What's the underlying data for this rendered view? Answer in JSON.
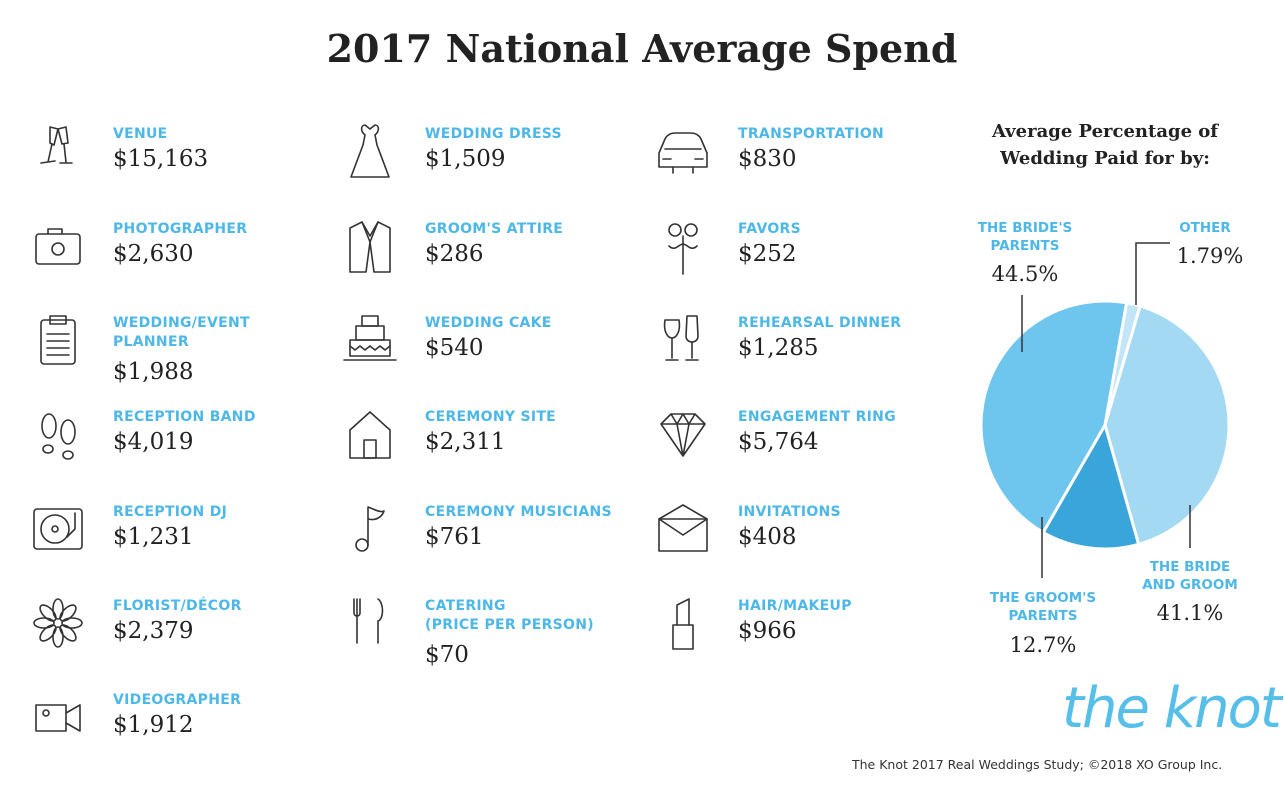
{
  "title": "2017 National Average Spend",
  "columns": [
    [
      {
        "label": "VENUE",
        "value": "$15,163",
        "icon": "champagne-glasses"
      },
      {
        "label": "PHOTOGRAPHER",
        "value": "$2,630",
        "icon": "camera"
      },
      {
        "label": "WEDDING/EVENT\nPLANNER",
        "value": "$1,988",
        "icon": "clipboard"
      },
      {
        "label": "RECEPTION BAND",
        "value": "$4,019",
        "icon": "footprints"
      },
      {
        "label": "RECEPTION DJ",
        "value": "$1,231",
        "icon": "turntable"
      },
      {
        "label": "FLORIST/DÉCOR",
        "value": "$2,379",
        "icon": "flower"
      },
      {
        "label": "VIDEOGRAPHER",
        "value": "$1,912",
        "icon": "video-camera"
      }
    ],
    [
      {
        "label": "WEDDING DRESS",
        "value": "$1,509",
        "icon": "dress"
      },
      {
        "label": "GROOM'S ATTIRE",
        "value": "$286",
        "icon": "suit-jacket"
      },
      {
        "label": "WEDDING CAKE",
        "value": "$540",
        "icon": "cake"
      },
      {
        "label": "CEREMONY SITE",
        "value": "$2,311",
        "icon": "house"
      },
      {
        "label": "CEREMONY MUSICIANS",
        "value": "$761",
        "icon": "music-note"
      },
      {
        "label": "CATERING\n(PRICE PER PERSON)",
        "value": "$70",
        "icon": "fork-knife"
      }
    ],
    [
      {
        "label": "TRANSPORTATION",
        "value": "$830",
        "icon": "car"
      },
      {
        "label": "FAVORS",
        "value": "$252",
        "icon": "mustache-glasses-prop"
      },
      {
        "label": "REHEARSAL DINNER",
        "value": "$1,285",
        "icon": "wine-glasses"
      },
      {
        "label": "ENGAGEMENT RING",
        "value": "$5,764",
        "icon": "diamond"
      },
      {
        "label": "INVITATIONS",
        "value": "$408",
        "icon": "envelope"
      },
      {
        "label": "HAIR/MAKEUP",
        "value": "$966",
        "icon": "lipstick"
      }
    ]
  ],
  "chart_data": {
    "type": "pie",
    "title": "Average Percentage of Wedding Paid for by:",
    "unit": "%",
    "slices": [
      {
        "label": "OTHER",
        "value": 1.79,
        "display": "1.79%",
        "color": "#c2e6f8"
      },
      {
        "label": "THE BRIDE\nAND GROOM",
        "value": 41.1,
        "display": "41.1%",
        "color": "#a3d9f3"
      },
      {
        "label": "THE GROOM'S\nPARENTS",
        "value": 12.7,
        "display": "12.7%",
        "color": "#3aa5da"
      },
      {
        "label": "THE BRIDE'S\nPARENTS",
        "value": 44.5,
        "display": "44.5%",
        "color": "#6ec6ee"
      }
    ]
  },
  "logo": "the knot",
  "source": "The Knot 2017 Real Weddings Study; ©2018 XO Group Inc.",
  "colors": {
    "accent": "#4db8e8",
    "text": "#222222"
  }
}
